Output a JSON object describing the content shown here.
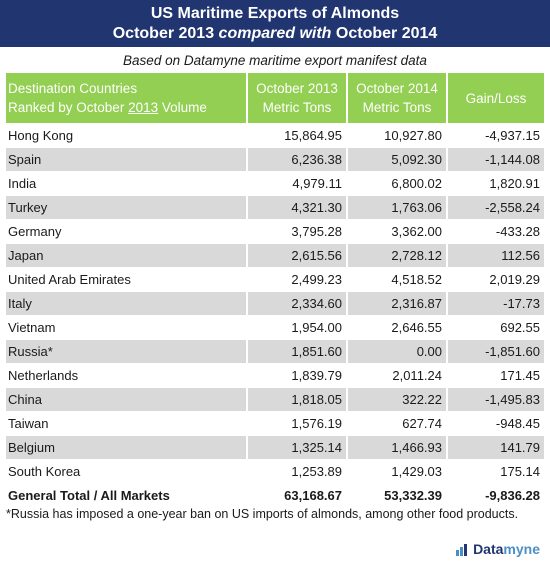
{
  "title_line1": "US Maritime Exports of Almonds",
  "title_line2_pre": "October 2013 ",
  "title_line2_em": "compared with",
  "title_line2_post": " October 2014",
  "subtitle": "Based on Datamyne maritime export manifest data",
  "headers": {
    "col0_line1": "Destination Countries",
    "col0_line2_pre": "Ranked by October ",
    "col0_line2_year": "2013",
    "col0_line2_post": " Volume",
    "col1_line1": "October 2013",
    "col1_line2": "Metric Tons",
    "col2_line1": "October 2014",
    "col2_line2": "Metric Tons",
    "col3": "Gain/Loss"
  },
  "rows": [
    {
      "country": "Hong Kong",
      "oct2013": "15,864.95",
      "oct2014": "10,927.80",
      "gain_loss": "-4,937.15"
    },
    {
      "country": "Spain",
      "oct2013": "6,236.38",
      "oct2014": "5,092.30",
      "gain_loss": "-1,144.08"
    },
    {
      "country": "India",
      "oct2013": "4,979.11",
      "oct2014": "6,800.02",
      "gain_loss": "1,820.91"
    },
    {
      "country": "Turkey",
      "oct2013": "4,321.30",
      "oct2014": "1,763.06",
      "gain_loss": "-2,558.24"
    },
    {
      "country": "Germany",
      "oct2013": "3,795.28",
      "oct2014": "3,362.00",
      "gain_loss": "-433.28"
    },
    {
      "country": "Japan",
      "oct2013": "2,615.56",
      "oct2014": "2,728.12",
      "gain_loss": "112.56"
    },
    {
      "country": "United Arab Emirates",
      "oct2013": "2,499.23",
      "oct2014": "4,518.52",
      "gain_loss": "2,019.29"
    },
    {
      "country": "Italy",
      "oct2013": "2,334.60",
      "oct2014": "2,316.87",
      "gain_loss": "-17.73"
    },
    {
      "country": "Vietnam",
      "oct2013": "1,954.00",
      "oct2014": "2,646.55",
      "gain_loss": "692.55"
    },
    {
      "country": "Russia*",
      "oct2013": "1,851.60",
      "oct2014": "0.00",
      "gain_loss": "-1,851.60"
    },
    {
      "country": "Netherlands",
      "oct2013": "1,839.79",
      "oct2014": "2,011.24",
      "gain_loss": "171.45"
    },
    {
      "country": "China",
      "oct2013": "1,818.05",
      "oct2014": "322.22",
      "gain_loss": "-1,495.83"
    },
    {
      "country": "Taiwan",
      "oct2013": "1,576.19",
      "oct2014": "627.74",
      "gain_loss": "-948.45"
    },
    {
      "country": "Belgium",
      "oct2013": "1,325.14",
      "oct2014": "1,466.93",
      "gain_loss": "141.79"
    },
    {
      "country": "South Korea",
      "oct2013": "1,253.89",
      "oct2014": "1,429.03",
      "gain_loss": "175.14"
    }
  ],
  "total": {
    "country": "General Total / All Markets",
    "oct2013": "63,168.67",
    "oct2014": "53,332.39",
    "gain_loss": "-9,836.28"
  },
  "footnote": "*Russia has imposed a one-year ban on US imports of almonds, among other food products.",
  "logo": {
    "part1": "Data",
    "part2": "myne"
  },
  "colors": {
    "title_bg": "#213570",
    "header_bg": "#92cf52",
    "stripe": "#d9d9d9",
    "logo_blue": "#4a90c8"
  }
}
